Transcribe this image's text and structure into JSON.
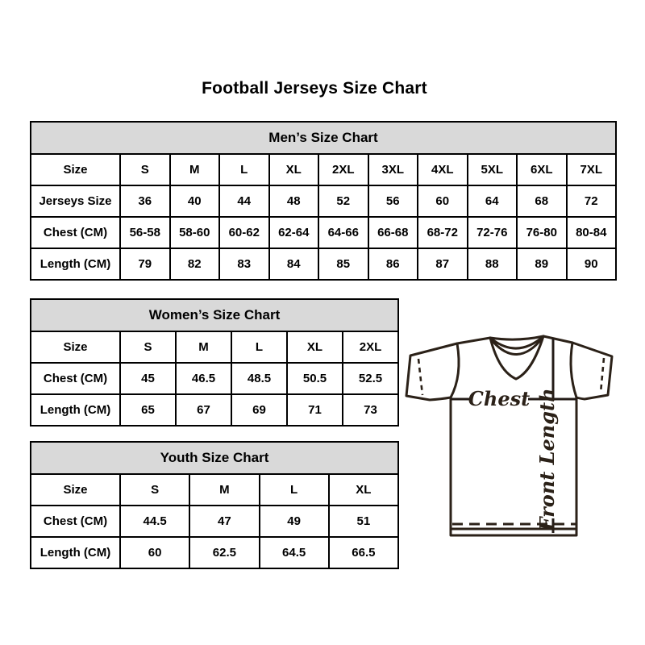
{
  "page": {
    "title": "Football Jerseys Size Chart",
    "background": "#ffffff"
  },
  "colors": {
    "table_border": "#000000",
    "header_bg": "#d9d9d9",
    "text": "#000000",
    "diagram_stroke": "#2b2118"
  },
  "chart_data": [
    {
      "type": "table",
      "title": "Men’s Size Chart",
      "header_row": [
        "Size",
        "S",
        "M",
        "L",
        "XL",
        "2XL",
        "3XL",
        "4XL",
        "5XL",
        "6XL",
        "7XL"
      ],
      "rows": [
        [
          "Jerseys Size",
          "36",
          "40",
          "44",
          "48",
          "52",
          "56",
          "60",
          "64",
          "68",
          "72"
        ],
        [
          "Chest (CM)",
          "56-58",
          "58-60",
          "60-62",
          "62-64",
          "64-66",
          "66-68",
          "68-72",
          "72-76",
          "76-80",
          "80-84"
        ],
        [
          "Length (CM)",
          "79",
          "82",
          "83",
          "84",
          "85",
          "86",
          "87",
          "88",
          "89",
          "90"
        ]
      ]
    },
    {
      "type": "table",
      "title": "Women’s Size Chart",
      "header_row": [
        "Size",
        "S",
        "M",
        "L",
        "XL",
        "2XL"
      ],
      "rows": [
        [
          "Chest (CM)",
          "45",
          "46.5",
          "48.5",
          "50.5",
          "52.5"
        ],
        [
          "Length (CM)",
          "65",
          "67",
          "69",
          "71",
          "73"
        ]
      ]
    },
    {
      "type": "table",
      "title": "Youth Size Chart",
      "header_row": [
        "Size",
        "S",
        "M",
        "L",
        "XL"
      ],
      "rows": [
        [
          "Chest (CM)",
          "44.5",
          "47",
          "49",
          "51"
        ],
        [
          "Length (CM)",
          "60",
          "62.5",
          "64.5",
          "66.5"
        ]
      ]
    }
  ],
  "diagram": {
    "chest_label": "Chest",
    "front_length_label": "Front Length"
  }
}
